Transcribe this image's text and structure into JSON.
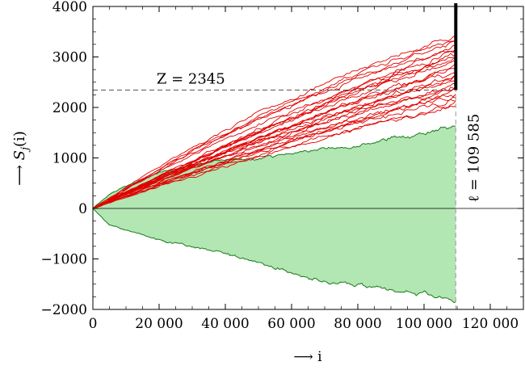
{
  "chart_data": {
    "type": "line",
    "xlabel": "⟶ i",
    "ylabel_prefix": "⟶ ",
    "ylabel_symbol": "S",
    "ylabel_subscript": "j",
    "ylabel_suffix": "(i)",
    "xlim": [
      0,
      130000
    ],
    "ylim": [
      -2000,
      4000
    ],
    "x_ticks": [
      {
        "value": 0,
        "label": "0"
      },
      {
        "value": 20000,
        "label": "20 000"
      },
      {
        "value": 40000,
        "label": "40 000"
      },
      {
        "value": 60000,
        "label": "60 000"
      },
      {
        "value": 80000,
        "label": "80 000"
      },
      {
        "value": 100000,
        "label": "100 000"
      },
      {
        "value": 120000,
        "label": "120 000"
      }
    ],
    "y_ticks": [
      {
        "value": -2000,
        "label": "−2000"
      },
      {
        "value": -1000,
        "label": "−1000"
      },
      {
        "value": 0,
        "label": "0"
      },
      {
        "value": 1000,
        "label": "1000"
      },
      {
        "value": 2000,
        "label": "2000"
      },
      {
        "value": 3000,
        "label": "3000"
      },
      {
        "value": 4000,
        "label": "4000"
      }
    ],
    "grid": false,
    "legend": "none",
    "annotations": {
      "z_label": "Z = 2345",
      "z_value": 2345,
      "ell_label": "ℓ = 109 585",
      "ell_value": 109585
    },
    "envelope": {
      "x": [
        0,
        5000,
        10000,
        20000,
        30000,
        40000,
        50000,
        60000,
        70000,
        80000,
        90000,
        100000,
        105000,
        109585
      ],
      "upper": [
        0,
        280,
        450,
        700,
        870,
        950,
        1000,
        1090,
        1180,
        1260,
        1380,
        1500,
        1580,
        1620
      ],
      "lower": [
        0,
        -330,
        -430,
        -620,
        -760,
        -890,
        -1060,
        -1290,
        -1450,
        -1530,
        -1620,
        -1700,
        -1760,
        -1830
      ]
    },
    "series_count": 25,
    "series_end_range": [
      2000,
      3450
    ],
    "colors": {
      "series": "#e00000",
      "envelope_fill": "#b2e6b3",
      "envelope_line": "#1a7a1a",
      "axis": "#000000",
      "barrier": "#000000",
      "dashed": "#555555"
    }
  }
}
